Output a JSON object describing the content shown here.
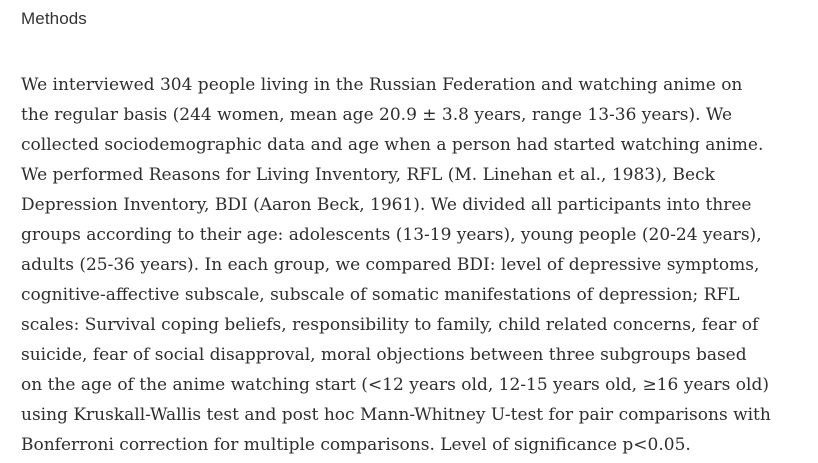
{
  "page": {
    "heading": "Methods",
    "paragraph": "We interviewed 304 people living in the Russian Federation and watching anime on the regular basis (244 women, mean age 20.9 ± 3.8 years, range 13-36 years). We collected sociodemographic data and age when a person had started watching anime. We performed Reasons for Living Inventory, RFL (M. Linehan et al., 1983), Beck Depression Inventory, BDI (Aaron Beck, 1961). We divided all participants into three groups according to their age: adolescents (13-19 years), young people (20-24 years), adults (25-36 years). In each group, we compared BDI: level of depressive symptoms, cognitive-affective subscale, subscale of somatic manifestations of depression; RFL scales: Survival coping beliefs, responsibility to family, child related concerns, fear of suicide, fear of social disapproval, moral objections between three subgroups based on the age of the anime watching start (<12 years old, 12-15 years old, ≥16 years old) using Kruskall-Wallis test and post hoc Mann-Whitney U-test for pair comparisons with Bonferroni correction for multiple comparisons. Level of significance p<0.05.",
    "colors": {
      "background": "#ffffff",
      "heading_text": "#333333",
      "body_text": "#2e2e2e"
    }
  }
}
